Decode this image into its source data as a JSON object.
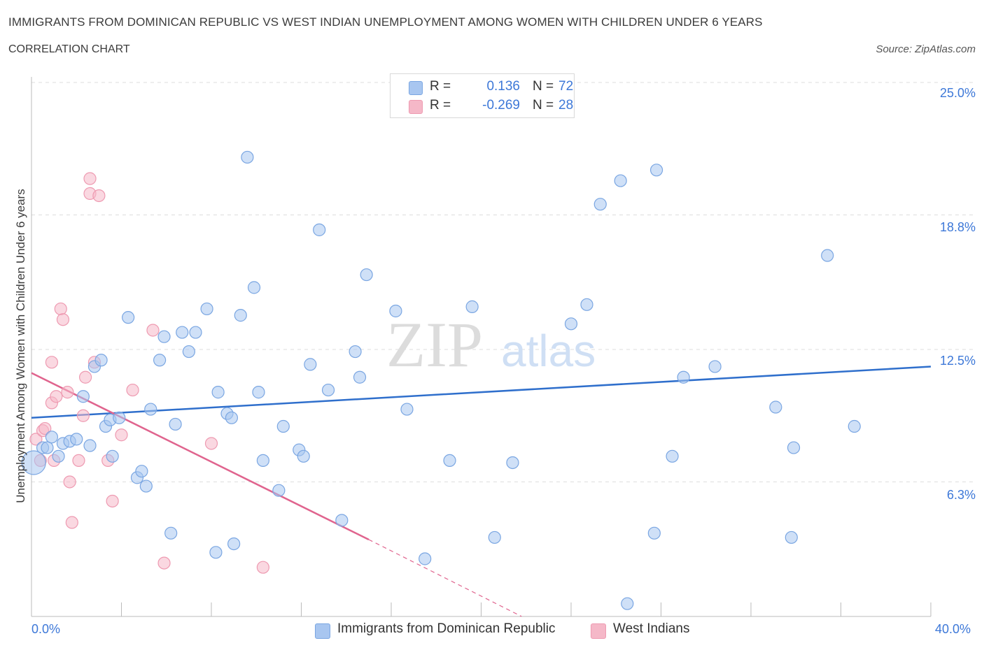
{
  "title": "IMMIGRANTS FROM DOMINICAN REPUBLIC VS WEST INDIAN UNEMPLOYMENT AMONG WOMEN WITH CHILDREN UNDER 6 YEARS",
  "subtitle": "CORRELATION CHART",
  "source": "Source: ZipAtlas.com",
  "watermark": {
    "zip": "ZIP",
    "atlas": "atlas"
  },
  "legend": {
    "rows": [
      {
        "r_label": "R =",
        "r_value": "0.136",
        "n_label": "N =",
        "n_value": "72",
        "color": "#a8c6f0"
      },
      {
        "r_label": "R =",
        "r_value": "-0.269",
        "n_label": "N =",
        "n_value": "28",
        "color": "#f5b8c8"
      }
    ]
  },
  "colors": {
    "blue_fill": "#a8c6f0",
    "blue_stroke": "#7aa6e2",
    "blue_line": "#2f6fcc",
    "pink_fill": "#f5b8c8",
    "pink_stroke": "#ee9ab1",
    "pink_line": "#e0648e",
    "tick_text": "#3d78d8",
    "grid": "#dddddd"
  },
  "chart_data": {
    "type": "scatter",
    "title": "IMMIGRANTS FROM DOMINICAN REPUBLIC VS WEST INDIAN UNEMPLOYMENT AMONG WOMEN WITH CHILDREN UNDER 6 YEARS",
    "xlabel": "",
    "ylabel": "Unemployment Among Women with Children Under 6 years",
    "xlim": [
      0,
      40
    ],
    "ylim": [
      0,
      25
    ],
    "x_tick_labels": [
      "0.0%",
      "40.0%"
    ],
    "y_ticks": [
      6.3,
      12.5,
      18.8,
      25.0
    ],
    "y_tick_labels": [
      "6.3%",
      "12.5%",
      "18.8%",
      "25.0%"
    ],
    "grid": true,
    "legend_position": "bottom",
    "series": [
      {
        "name": "Immigrants from Dominican Republic",
        "color": "#a8c6f0",
        "trend": {
          "x": [
            0,
            40
          ],
          "y": [
            9.3,
            11.7
          ]
        },
        "points": [
          [
            0.1,
            7.2,
            "big"
          ],
          [
            0.5,
            7.9
          ],
          [
            0.7,
            7.9
          ],
          [
            0.9,
            8.4
          ],
          [
            1.2,
            7.5
          ],
          [
            1.4,
            8.1
          ],
          [
            1.7,
            8.2
          ],
          [
            2.0,
            8.3
          ],
          [
            2.3,
            10.3
          ],
          [
            2.6,
            8.0
          ],
          [
            2.8,
            11.7
          ],
          [
            3.1,
            12.0
          ],
          [
            3.3,
            8.9
          ],
          [
            3.5,
            9.2
          ],
          [
            3.6,
            7.5
          ],
          [
            3.9,
            9.3
          ],
          [
            4.3,
            14.0
          ],
          [
            4.7,
            6.5
          ],
          [
            4.9,
            6.8
          ],
          [
            5.1,
            6.1
          ],
          [
            5.3,
            9.7
          ],
          [
            5.7,
            12.0
          ],
          [
            5.9,
            13.1
          ],
          [
            6.2,
            3.9
          ],
          [
            6.4,
            9.0
          ],
          [
            6.7,
            13.3
          ],
          [
            7.0,
            12.4
          ],
          [
            7.3,
            13.3
          ],
          [
            7.8,
            14.4
          ],
          [
            8.2,
            3.0
          ],
          [
            8.3,
            10.5
          ],
          [
            8.7,
            9.5
          ],
          [
            8.9,
            9.3
          ],
          [
            9.0,
            3.4
          ],
          [
            9.3,
            14.1
          ],
          [
            9.6,
            21.5
          ],
          [
            9.9,
            15.4
          ],
          [
            10.1,
            10.5
          ],
          [
            10.3,
            7.3
          ],
          [
            11.0,
            5.9
          ],
          [
            11.2,
            8.9
          ],
          [
            11.9,
            7.8
          ],
          [
            12.1,
            7.5
          ],
          [
            12.4,
            11.8
          ],
          [
            12.8,
            18.1
          ],
          [
            13.2,
            10.6
          ],
          [
            13.8,
            4.5
          ],
          [
            14.4,
            12.4
          ],
          [
            14.6,
            11.2
          ],
          [
            14.9,
            16.0
          ],
          [
            16.2,
            14.3
          ],
          [
            16.7,
            9.7
          ],
          [
            17.5,
            2.7
          ],
          [
            18.6,
            7.3
          ],
          [
            19.6,
            14.5
          ],
          [
            20.6,
            3.7
          ],
          [
            21.4,
            7.2
          ],
          [
            24.0,
            13.7
          ],
          [
            24.7,
            14.6
          ],
          [
            25.3,
            19.3
          ],
          [
            26.2,
            20.4
          ],
          [
            26.5,
            0.6
          ],
          [
            27.7,
            3.9
          ],
          [
            27.8,
            20.9
          ],
          [
            28.5,
            7.5
          ],
          [
            29.0,
            11.2
          ],
          [
            30.4,
            11.7
          ],
          [
            33.1,
            9.8
          ],
          [
            33.8,
            3.7
          ],
          [
            33.9,
            7.9
          ],
          [
            35.4,
            16.9
          ],
          [
            36.6,
            8.9
          ]
        ]
      },
      {
        "name": "West Indians",
        "color": "#f5b8c8",
        "trend": {
          "x": [
            0,
            15.0
          ],
          "y": [
            11.4,
            3.6
          ],
          "dashed_to": [
            21.8,
            0
          ]
        },
        "points": [
          [
            0.2,
            8.3
          ],
          [
            0.4,
            7.3
          ],
          [
            0.5,
            8.7
          ],
          [
            0.6,
            8.8
          ],
          [
            0.9,
            11.9
          ],
          [
            0.9,
            10.0
          ],
          [
            1.0,
            7.3
          ],
          [
            1.1,
            10.3
          ],
          [
            1.3,
            14.4
          ],
          [
            1.4,
            13.9
          ],
          [
            1.6,
            10.5
          ],
          [
            1.7,
            6.3
          ],
          [
            1.8,
            4.4
          ],
          [
            2.1,
            7.3
          ],
          [
            2.3,
            9.4
          ],
          [
            2.4,
            11.2
          ],
          [
            2.6,
            20.5
          ],
          [
            2.6,
            19.8
          ],
          [
            2.8,
            11.9
          ],
          [
            3.0,
            19.7
          ],
          [
            3.4,
            7.3
          ],
          [
            3.6,
            5.4
          ],
          [
            4.0,
            8.5
          ],
          [
            4.5,
            10.6
          ],
          [
            5.4,
            13.4
          ],
          [
            5.9,
            2.5
          ],
          [
            8.0,
            8.1
          ],
          [
            10.3,
            2.3
          ]
        ]
      }
    ]
  },
  "bottom_legend": [
    {
      "label": "Immigrants from Dominican Republic",
      "color": "#a8c6f0"
    },
    {
      "label": "West Indians",
      "color": "#f5b8c8"
    }
  ]
}
